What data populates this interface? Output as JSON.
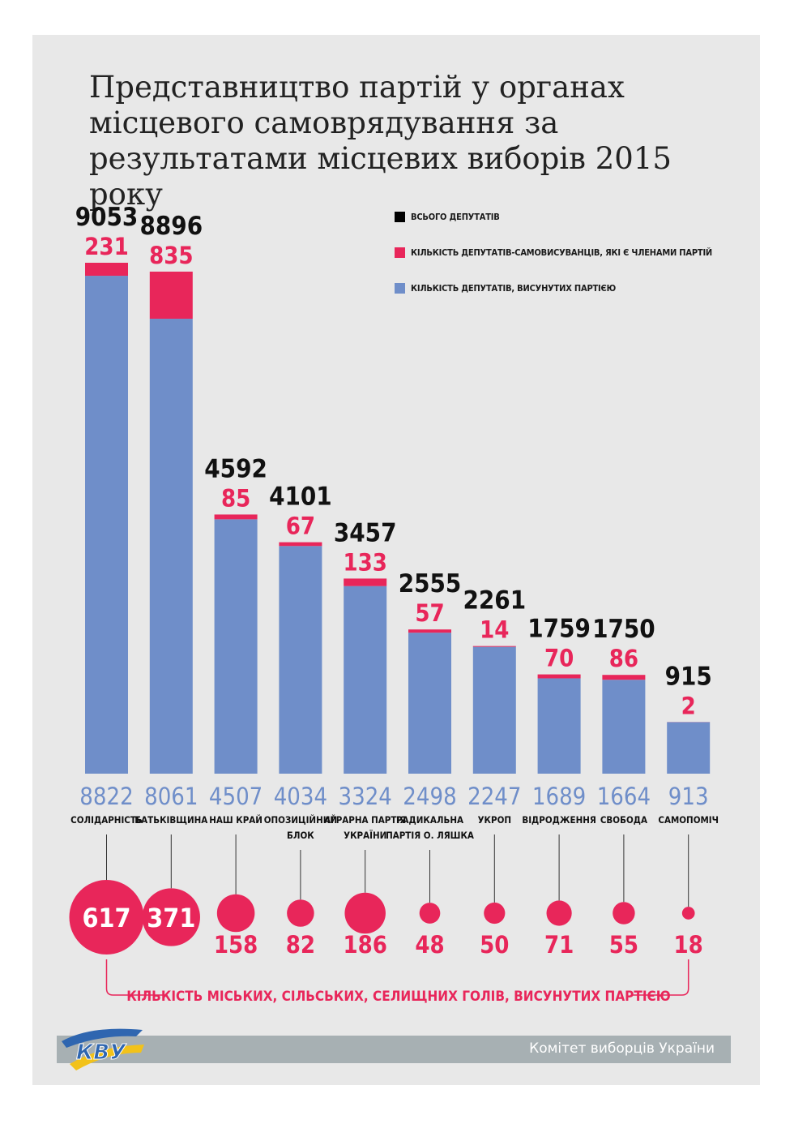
{
  "title": "Представництво партій у органах місцевого самоврядування за результатами місцевих виборів 2015 року",
  "legend": [
    {
      "label": "Всього депутатів",
      "color": "#000000"
    },
    {
      "label": "Кількість депутатів-самовисуванців, які є членами партій",
      "color": "#e8265a"
    },
    {
      "label": "Кількість депутатів, висунутих партією",
      "color": "#6f8ec9"
    }
  ],
  "colors": {
    "nominated": "#6f8ec9",
    "self_nominated": "#e8265a",
    "total": "#111111",
    "background": "#e8e8e8"
  },
  "chart_data": {
    "type": "bar",
    "stacked": true,
    "categories": [
      [
        "СОЛІДАРНІСТЬ"
      ],
      [
        "БАТЬКІВЩИНА"
      ],
      [
        "НАШ КРАЙ"
      ],
      [
        "ОПОЗИЦІЙНИЙ",
        "БЛОК"
      ],
      [
        "АГРАРНА ПАРТІЯ",
        "УКРАЇНИ"
      ],
      [
        "РАДИКАЛЬНА",
        "ПАРТІЯ О. ЛЯШКА"
      ],
      [
        "УКРОП"
      ],
      [
        "ВІДРОДЖЕННЯ"
      ],
      [
        "СВОБОДА"
      ],
      [
        "САМОПОМІЧ"
      ]
    ],
    "series": [
      {
        "name": "Кількість депутатів, висунутих партією",
        "values": [
          8822,
          8061,
          4507,
          4034,
          3324,
          2498,
          2247,
          1689,
          1664,
          913
        ]
      },
      {
        "name": "Кількість депутатів-самовисуванців, які є членами партій",
        "values": [
          231,
          835,
          85,
          67,
          133,
          57,
          14,
          70,
          86,
          2
        ]
      }
    ],
    "totals": [
      9053,
      8896,
      4592,
      4101,
      3457,
      2555,
      2261,
      1759,
      1750,
      915
    ],
    "heads": {
      "values": [
        617,
        371,
        158,
        82,
        186,
        48,
        50,
        71,
        55,
        18
      ],
      "caption": "КІЛЬКІСТЬ МІСЬКИХ, СІЛЬСЬКИХ, СЕЛИЩНИХ ГОЛІВ, ВИСУНУТИХ ПАРТІЄЮ"
    },
    "ylim": [
      0,
      9053
    ]
  },
  "footer": {
    "text": "Комітет виборців України",
    "logo_text": "КВУ"
  }
}
